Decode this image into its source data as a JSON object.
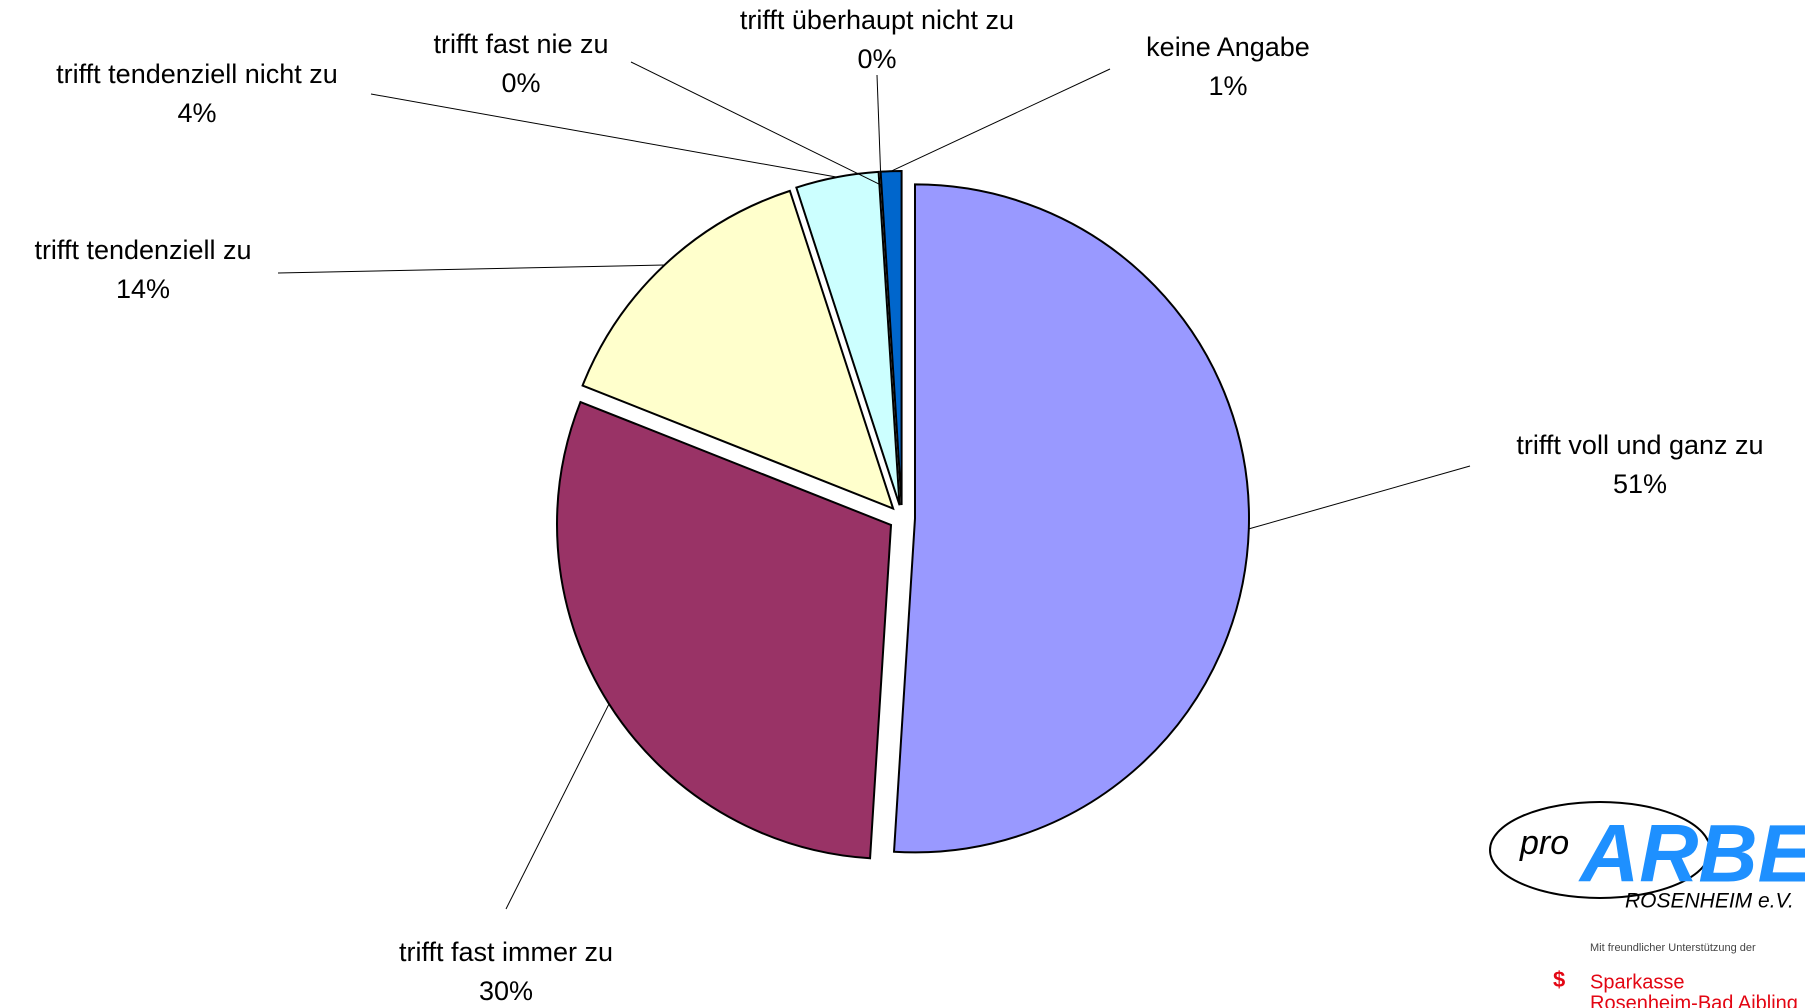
{
  "chart_data": {
    "type": "pie",
    "categories": [
      "trifft voll und ganz zu",
      "trifft fast immer zu",
      "trifft tendenziell zu",
      "trifft tendenziell nicht zu",
      "trifft fast nie zu",
      "trifft überhaupt nicht zu",
      "keine Angabe"
    ],
    "values": [
      51,
      30,
      14,
      4,
      0,
      0,
      1
    ],
    "value_labels": [
      "51%",
      "30%",
      "14%",
      "4%",
      "0%",
      "0%",
      "1%"
    ],
    "colors": [
      "#9999ff",
      "#993366",
      "#ffffcc",
      "#ccffff",
      "#66ccff",
      "#3399ff",
      "#0066cc"
    ]
  },
  "logo": {
    "pro": "pro",
    "name": "ARBEIT",
    "place": "ROSENHEIM e.V.",
    "support": "Mit freundlicher Unterstützung der",
    "bank": "Sparkasse",
    "bank_place": "Rosenheim-Bad Aibling"
  }
}
